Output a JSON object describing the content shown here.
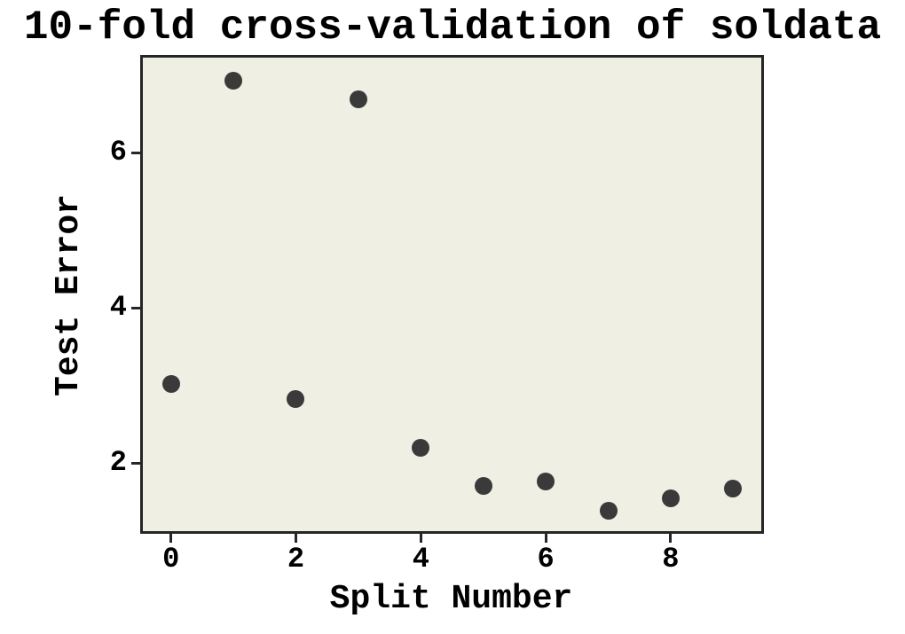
{
  "chart_data": {
    "type": "scatter",
    "title": "10-fold cross-validation of soldata",
    "xlabel": "Split Number",
    "ylabel": "Test Error",
    "x": [
      0,
      1,
      2,
      3,
      4,
      5,
      6,
      7,
      8,
      9
    ],
    "y": [
      3.02,
      6.93,
      2.83,
      6.69,
      2.19,
      1.7,
      1.76,
      1.38,
      1.54,
      1.67
    ],
    "xlim": [
      -0.45,
      9.45
    ],
    "ylim": [
      1.12,
      7.23
    ],
    "xticks": [
      0,
      2,
      4,
      6,
      8
    ],
    "yticks": [
      2,
      4,
      6
    ],
    "grid": false,
    "legend": null,
    "colors": {
      "marker": "#3a3a3a",
      "plot_background": "#f0efe3",
      "figure_background": "#ffffff",
      "spine": "#262626",
      "text": "#000000"
    }
  }
}
